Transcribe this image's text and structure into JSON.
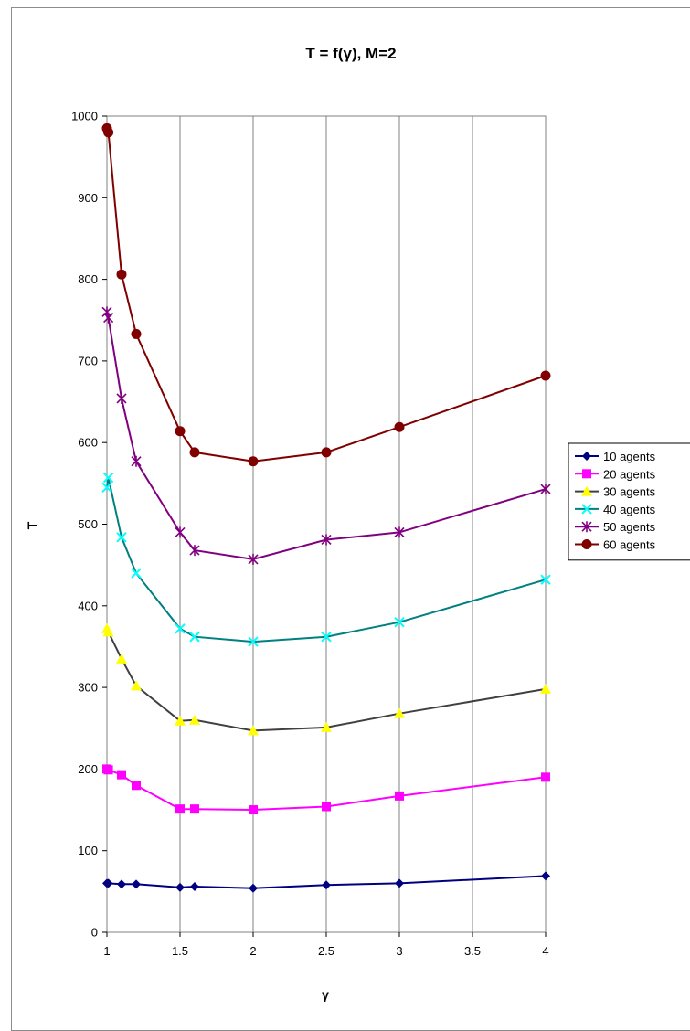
{
  "chart_data": {
    "type": "line",
    "title": "T = f(γ), M=2",
    "xlabel": "γ",
    "ylabel": "T",
    "xlim": [
      1,
      4
    ],
    "ylim": [
      0,
      1000
    ],
    "xticks": [
      1,
      1.5,
      2,
      2.5,
      3,
      3.5,
      4
    ],
    "xtick_labels": [
      "1",
      "1.5",
      "2",
      "2.5",
      "3",
      "3.5",
      "4"
    ],
    "yticks": [
      0,
      100,
      200,
      300,
      400,
      500,
      600,
      700,
      800,
      900,
      1000
    ],
    "ytick_labels": [
      "0",
      "100",
      "200",
      "300",
      "400",
      "500",
      "600",
      "700",
      "800",
      "900",
      "1000"
    ],
    "grid": "vertical",
    "legend_position": "right",
    "series": [
      {
        "name": "10 agents",
        "color": "#000080",
        "marker": "diamond",
        "points": [
          [
            1.0,
            60
          ],
          [
            1.01,
            60
          ],
          [
            1.1,
            59
          ],
          [
            1.2,
            59
          ],
          [
            1.5,
            55
          ],
          [
            1.6,
            56
          ],
          [
            2.0,
            54
          ],
          [
            2.5,
            58
          ],
          [
            3.0,
            60
          ],
          [
            4.0,
            69
          ]
        ]
      },
      {
        "name": "20 agents",
        "color": "#ff00ff",
        "marker": "square",
        "points": [
          [
            1.0,
            200
          ],
          [
            1.01,
            199
          ],
          [
            1.1,
            193
          ],
          [
            1.2,
            180
          ],
          [
            1.5,
            151
          ],
          [
            1.6,
            151
          ],
          [
            2.0,
            150
          ],
          [
            2.5,
            154
          ],
          [
            3.0,
            167
          ],
          [
            4.0,
            190
          ]
        ]
      },
      {
        "name": "30 agents",
        "color": "#ffff00",
        "line_color": "#404040",
        "marker": "triangle",
        "points": [
          [
            1.0,
            372
          ],
          [
            1.01,
            368
          ],
          [
            1.1,
            335
          ],
          [
            1.2,
            302
          ],
          [
            1.5,
            259
          ],
          [
            1.6,
            260
          ],
          [
            2.0,
            247
          ],
          [
            2.5,
            251
          ],
          [
            3.0,
            268
          ],
          [
            4.0,
            298
          ]
        ]
      },
      {
        "name": "40 agents",
        "color": "#00ffff",
        "line_color": "#008080",
        "marker": "x",
        "points": [
          [
            1.0,
            545
          ],
          [
            1.01,
            557
          ],
          [
            1.1,
            484
          ],
          [
            1.2,
            440
          ],
          [
            1.5,
            372
          ],
          [
            1.6,
            362
          ],
          [
            2.0,
            356
          ],
          [
            2.5,
            362
          ],
          [
            3.0,
            380
          ],
          [
            4.0,
            432
          ]
        ]
      },
      {
        "name": "50 agents",
        "color": "#800080",
        "marker": "star",
        "points": [
          [
            1.0,
            760
          ],
          [
            1.01,
            753
          ],
          [
            1.1,
            654
          ],
          [
            1.2,
            577
          ],
          [
            1.5,
            490
          ],
          [
            1.6,
            468
          ],
          [
            2.0,
            457
          ],
          [
            2.5,
            481
          ],
          [
            3.0,
            490
          ],
          [
            4.0,
            543
          ]
        ]
      },
      {
        "name": "60 agents",
        "color": "#800000",
        "marker": "circle",
        "points": [
          [
            1.0,
            985
          ],
          [
            1.01,
            980
          ],
          [
            1.1,
            806
          ],
          [
            1.2,
            733
          ],
          [
            1.5,
            614
          ],
          [
            1.6,
            588
          ],
          [
            2.0,
            577
          ],
          [
            2.5,
            588
          ],
          [
            3.0,
            619
          ],
          [
            4.0,
            682
          ]
        ]
      }
    ]
  }
}
